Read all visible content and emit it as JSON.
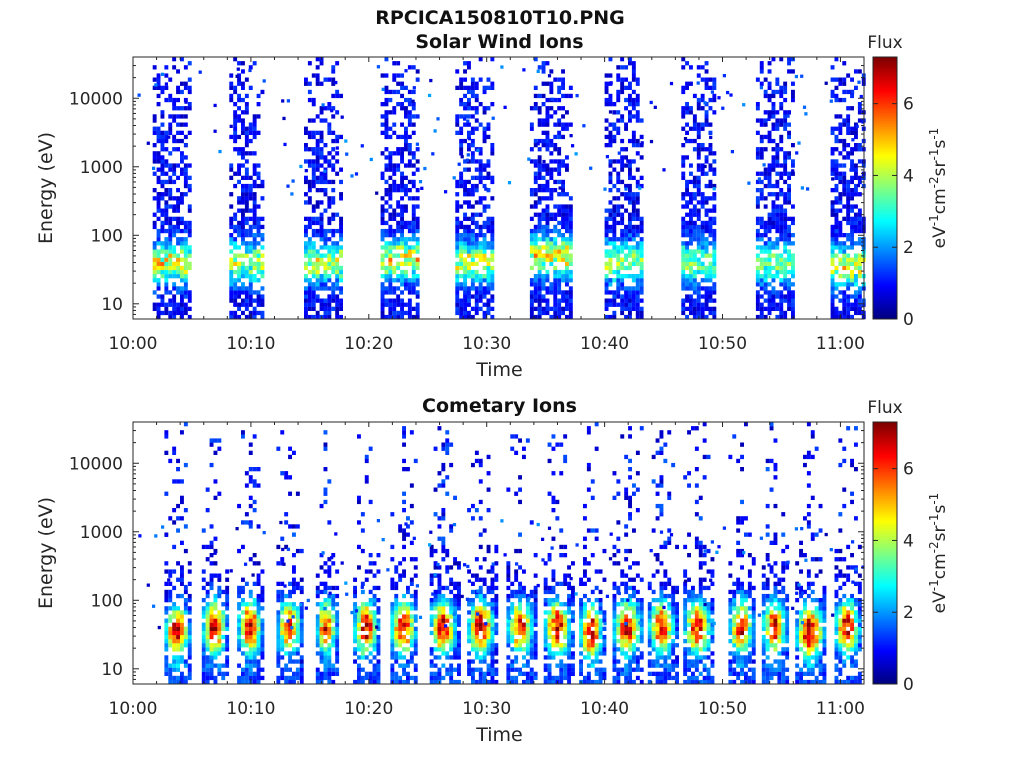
{
  "title": "RPCICA150810T10.PNG",
  "chart_data": [
    {
      "type": "heatmap",
      "title": "Solar Wind Ions",
      "xlabel": "Time",
      "ylabel": "Energy (eV)",
      "y_scale": "log",
      "x_range": [
        "10:00",
        "11:02"
      ],
      "ylim": [
        6,
        40000
      ],
      "x_ticks": [
        "10:00",
        "10:10",
        "10:20",
        "10:30",
        "10:40",
        "10:50",
        "11:00"
      ],
      "y_ticks": [
        "10",
        "100",
        "1000",
        "10000"
      ],
      "colorbar": {
        "label": "Flux",
        "units": "eV-1cm-2sr-1s-1",
        "range": [
          0,
          7.3
        ],
        "ticks": [
          "0",
          "2",
          "4",
          "6"
        ],
        "colormap": "jet"
      },
      "bursts": [
        {
          "start": "10:01:40",
          "end": "10:04:50",
          "peak_energy_ev": 40,
          "peak_flux": 4.5
        },
        {
          "start": "10:08:10",
          "end": "10:11:00",
          "peak_energy_ev": 40,
          "peak_flux": 4.0
        },
        {
          "start": "10:14:30",
          "end": "10:17:30",
          "peak_energy_ev": 40,
          "peak_flux": 4.0
        },
        {
          "start": "10:21:00",
          "end": "10:24:00",
          "peak_energy_ev": 45,
          "peak_flux": 4.5
        },
        {
          "start": "10:27:20",
          "end": "10:30:30",
          "peak_energy_ev": 40,
          "peak_flux": 4.5
        },
        {
          "start": "10:33:40",
          "end": "10:37:00",
          "peak_energy_ev": 50,
          "peak_flux": 4.5
        },
        {
          "start": "10:40:00",
          "end": "10:43:00",
          "peak_energy_ev": 40,
          "peak_flux": 4.0
        },
        {
          "start": "10:46:30",
          "end": "10:49:20",
          "peak_energy_ev": 40,
          "peak_flux": 3.5
        },
        {
          "start": "10:52:50",
          "end": "10:56:00",
          "peak_energy_ev": 40,
          "peak_flux": 3.5
        },
        {
          "start": "10:59:10",
          "end": "11:02:00",
          "peak_energy_ev": 35,
          "peak_flux": 4.5
        }
      ]
    },
    {
      "type": "heatmap",
      "title": "Cometary Ions",
      "xlabel": "Time",
      "ylabel": "Energy (eV)",
      "y_scale": "log",
      "x_range": [
        "10:00",
        "11:02"
      ],
      "ylim": [
        6,
        40000
      ],
      "x_ticks": [
        "10:00",
        "10:10",
        "10:20",
        "10:30",
        "10:40",
        "10:50",
        "11:00"
      ],
      "y_ticks": [
        "10",
        "100",
        "1000",
        "10000"
      ],
      "colorbar": {
        "label": "Flux",
        "units": "eV-1cm-2sr-1s-1",
        "range": [
          0,
          7.3
        ],
        "ticks": [
          "0",
          "2",
          "4",
          "6"
        ],
        "colormap": "jet"
      },
      "bursts": [
        {
          "start": "10:02:40",
          "end": "10:04:50",
          "peak_energy_ev": 35,
          "peak_flux": 6.8
        },
        {
          "start": "10:05:50",
          "end": "10:08:00",
          "peak_energy_ev": 40,
          "peak_flux": 6.5
        },
        {
          "start": "10:08:50",
          "end": "10:11:00",
          "peak_energy_ev": 40,
          "peak_flux": 6.6
        },
        {
          "start": "10:12:10",
          "end": "10:14:20",
          "peak_energy_ev": 40,
          "peak_flux": 5.8
        },
        {
          "start": "10:15:30",
          "end": "10:17:20",
          "peak_energy_ev": 40,
          "peak_flux": 6.0
        },
        {
          "start": "10:18:40",
          "end": "10:20:50",
          "peak_energy_ev": 40,
          "peak_flux": 6.5
        },
        {
          "start": "10:21:50",
          "end": "10:24:00",
          "peak_energy_ev": 40,
          "peak_flux": 6.8
        },
        {
          "start": "10:25:10",
          "end": "10:27:30",
          "peak_energy_ev": 40,
          "peak_flux": 6.5
        },
        {
          "start": "10:28:20",
          "end": "10:30:40",
          "peak_energy_ev": 40,
          "peak_flux": 6.8
        },
        {
          "start": "10:31:40",
          "end": "10:34:00",
          "peak_energy_ev": 40,
          "peak_flux": 6.2
        },
        {
          "start": "10:34:50",
          "end": "10:37:10",
          "peak_energy_ev": 40,
          "peak_flux": 6.7
        },
        {
          "start": "10:37:50",
          "end": "10:39:50",
          "peak_energy_ev": 35,
          "peak_flux": 6.9
        },
        {
          "start": "10:40:40",
          "end": "10:43:10",
          "peak_energy_ev": 40,
          "peak_flux": 6.3
        },
        {
          "start": "10:43:40",
          "end": "10:46:00",
          "peak_energy_ev": 40,
          "peak_flux": 6.0
        },
        {
          "start": "10:46:40",
          "end": "10:49:10",
          "peak_energy_ev": 40,
          "peak_flux": 6.2
        },
        {
          "start": "10:50:30",
          "end": "10:52:40",
          "peak_energy_ev": 40,
          "peak_flux": 6.1
        },
        {
          "start": "10:53:20",
          "end": "10:55:30",
          "peak_energy_ev": 40,
          "peak_flux": 6.0
        },
        {
          "start": "10:56:10",
          "end": "10:58:40",
          "peak_energy_ev": 35,
          "peak_flux": 6.9
        },
        {
          "start": "10:59:30",
          "end": "11:01:40",
          "peak_energy_ev": 40,
          "peak_flux": 6.5
        }
      ]
    }
  ]
}
